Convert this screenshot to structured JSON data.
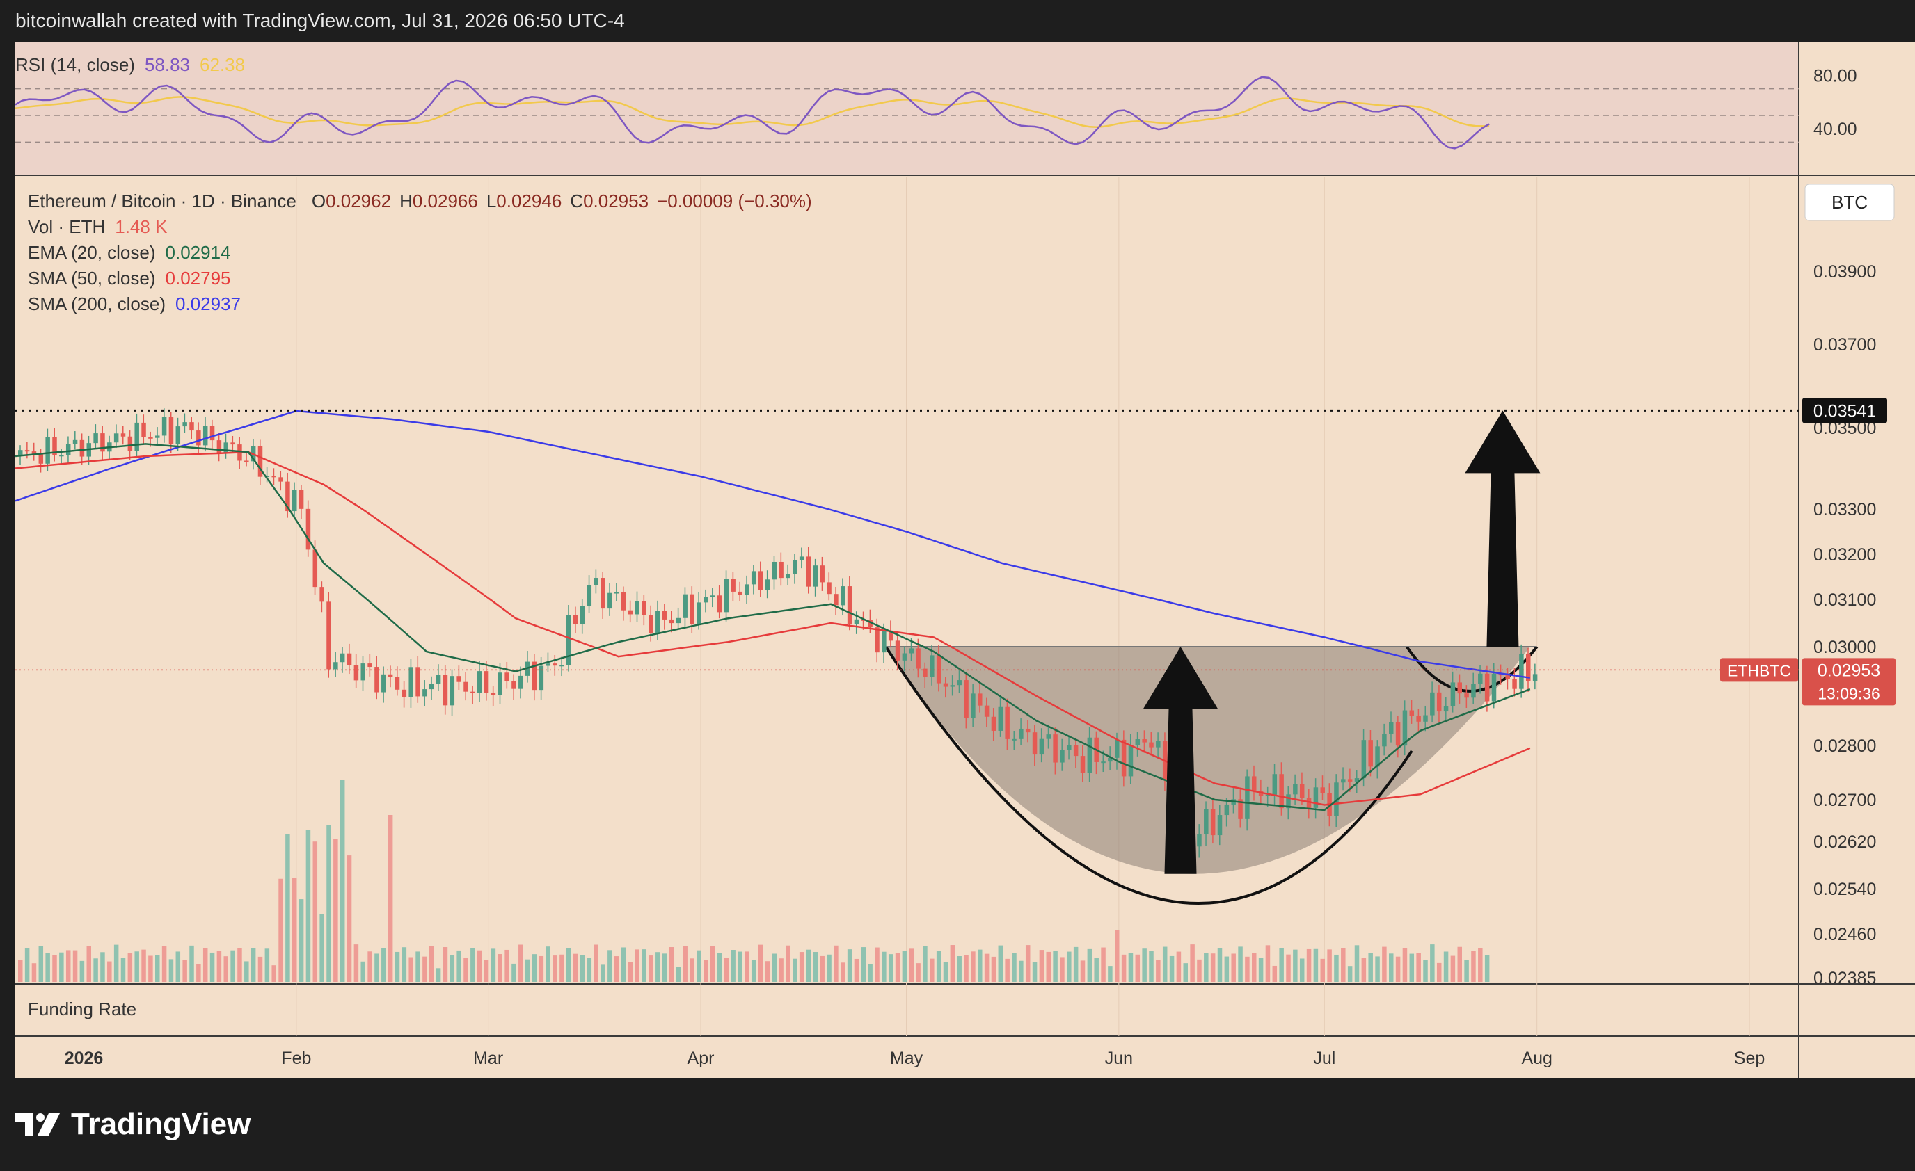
{
  "header": {
    "attribution": "bitcoinwallah created with TradingView.com, Jul 31, 2026 06:50 UTC-4"
  },
  "brand": {
    "name": "TradingView",
    "logo_icon": "tradingview-logo-icon"
  },
  "colors": {
    "background": "#f3dfca",
    "rsi_line": "#7e57c2",
    "rsi_ma": "#f2c94c",
    "candle_up": "#4c9a82",
    "candle_down": "#e55a53",
    "ema20": "#1f6b48",
    "sma50": "#e63b3b",
    "sma200": "#3b3be8",
    "price_tag": "#d9514a"
  },
  "rsi_pane": {
    "title": "RSI (14, close)",
    "rsi_value": "58.83",
    "ma_value": "62.38",
    "ticks": [
      "80.00",
      "40.00"
    ]
  },
  "main_pane": {
    "symbol_line": "Ethereum / Bitcoin · 1D · Binance",
    "ohlc": {
      "open_label": "O",
      "open": "0.02962",
      "high_label": "H",
      "high": "0.02966",
      "low_label": "L",
      "low": "0.02946",
      "close_label": "C",
      "close": "0.02953",
      "change": "−0.00009 (−0.30%)"
    },
    "indicators": [
      {
        "label": "Vol · ETH",
        "value": "1.48 K",
        "color": "#e55a53"
      },
      {
        "label": "EMA (20, close)",
        "value": "0.02914",
        "color": "#1f6b48"
      },
      {
        "label": "SMA (50, close)",
        "value": "0.02795",
        "color": "#e63b3b"
      },
      {
        "label": "SMA (200, close)",
        "value": "0.02937",
        "color": "#3b3be8"
      }
    ],
    "currency_button": "BTC",
    "price_ticks": [
      "0.03900",
      "0.03700",
      "0.03500",
      "0.03300",
      "0.03200",
      "0.03100",
      "0.03000",
      "0.02800",
      "0.02700",
      "0.02620",
      "0.02540",
      "0.02460",
      "0.02385"
    ],
    "resistance_label": "0.03541",
    "current_symbol": "ETHBTC",
    "current_price": "0.02953",
    "countdown": "13:09:36"
  },
  "funding_pane": {
    "title": "Funding Rate"
  },
  "time_axis": {
    "labels": [
      "2026",
      "Feb",
      "Mar",
      "Apr",
      "May",
      "Jun",
      "Jul",
      "Aug",
      "Sep"
    ]
  },
  "chart_data": {
    "type": "line",
    "title": "Ethereum / Bitcoin · 1D · Binance",
    "x_labels": [
      "2026",
      "Feb",
      "Mar",
      "Apr",
      "May",
      "Jun",
      "Jul",
      "Aug",
      "Sep"
    ],
    "y_range": [
      0.02385,
      0.0395
    ],
    "resistance": 0.03541,
    "current": 0.02953,
    "series": [
      {
        "name": "SMA (200, close)",
        "x": [
          "2025-12-22",
          "2026-01-05",
          "2026-01-20",
          "2026-02-01",
          "2026-02-15",
          "2026-03-01",
          "2026-03-15",
          "2026-04-01",
          "2026-04-15",
          "2026-05-01",
          "2026-05-15",
          "2026-06-01",
          "2026-06-15",
          "2026-07-01",
          "2026-07-15",
          "2026-07-31"
        ],
        "values": [
          0.0332,
          0.034,
          0.0348,
          0.0354,
          0.0352,
          0.0349,
          0.0344,
          0.0338,
          0.0332,
          0.0325,
          0.0318,
          0.0312,
          0.0307,
          0.0302,
          0.0297,
          0.02937
        ]
      },
      {
        "name": "SMA (50, close)",
        "x": [
          "2025-12-22",
          "2026-01-10",
          "2026-01-25",
          "2026-02-05",
          "2026-02-20",
          "2026-03-05",
          "2026-03-20",
          "2026-04-05",
          "2026-04-20",
          "2026-05-05",
          "2026-05-20",
          "2026-06-01",
          "2026-06-15",
          "2026-07-01",
          "2026-07-15",
          "2026-07-31"
        ],
        "values": [
          0.034,
          0.0343,
          0.0344,
          0.0336,
          0.032,
          0.0306,
          0.0298,
          0.0301,
          0.0305,
          0.0302,
          0.029,
          0.0281,
          0.0273,
          0.0269,
          0.0271,
          0.02795
        ]
      },
      {
        "name": "EMA (20, close)",
        "x": [
          "2025-12-22",
          "2026-01-10",
          "2026-01-25",
          "2026-02-05",
          "2026-02-20",
          "2026-03-05",
          "2026-03-20",
          "2026-04-05",
          "2026-04-20",
          "2026-05-05",
          "2026-05-20",
          "2026-06-01",
          "2026-06-15",
          "2026-07-01",
          "2026-07-15",
          "2026-07-31"
        ],
        "values": [
          0.0343,
          0.0346,
          0.0344,
          0.0318,
          0.0299,
          0.0295,
          0.0301,
          0.0306,
          0.0309,
          0.0299,
          0.0285,
          0.0277,
          0.027,
          0.0268,
          0.0283,
          0.02914
        ]
      },
      {
        "name": "ETHBTC close",
        "x": [
          "2025-12-22",
          "2026-01-05",
          "2026-01-15",
          "2026-01-25",
          "2026-02-01",
          "2026-02-05",
          "2026-02-15",
          "2026-03-01",
          "2026-03-10",
          "2026-03-15",
          "2026-03-25",
          "2026-04-05",
          "2026-04-15",
          "2026-04-25",
          "2026-05-05",
          "2026-05-15",
          "2026-05-25",
          "2026-06-01",
          "2026-06-05",
          "2026-06-10",
          "2026-06-20",
          "2026-07-01",
          "2026-07-10",
          "2026-07-20",
          "2026-07-31"
        ],
        "values": [
          0.0343,
          0.0347,
          0.035,
          0.0342,
          0.033,
          0.0298,
          0.0292,
          0.0292,
          0.0296,
          0.0313,
          0.0305,
          0.0312,
          0.0318,
          0.0303,
          0.0294,
          0.0283,
          0.0278,
          0.0278,
          0.0282,
          0.0262,
          0.0272,
          0.027,
          0.0283,
          0.0291,
          0.02953
        ]
      }
    ]
  }
}
